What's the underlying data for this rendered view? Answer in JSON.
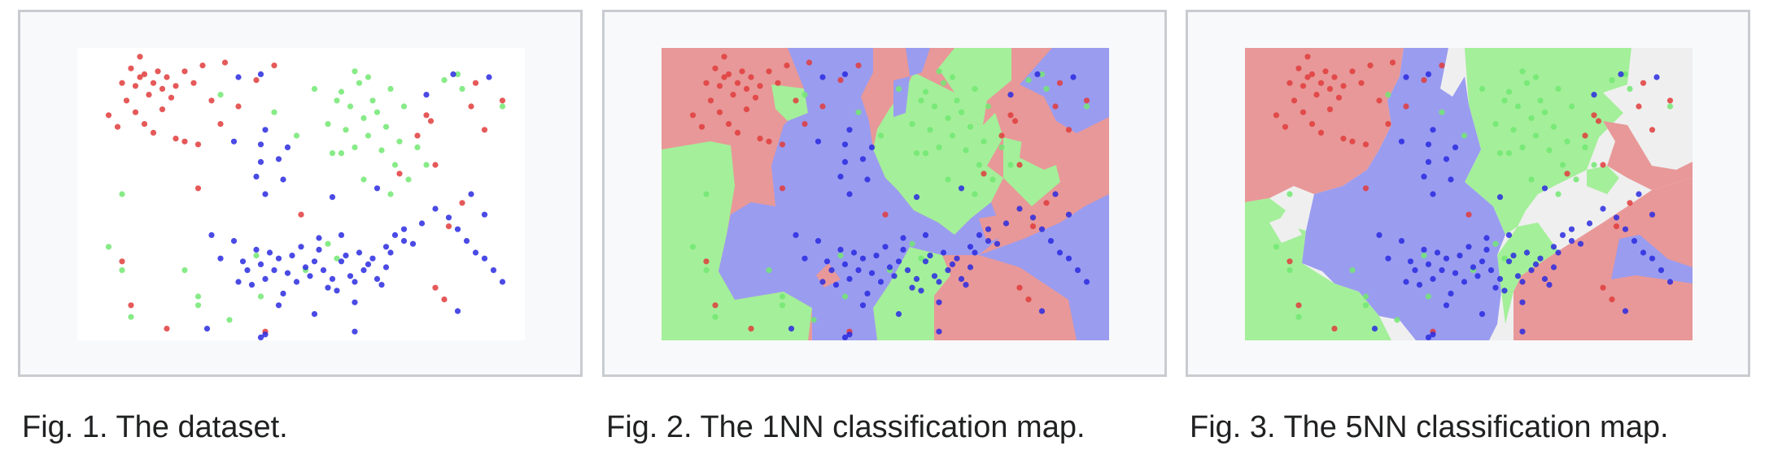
{
  "captions": {
    "fig1": "Fig. 1. The dataset.",
    "fig2": "Fig. 2. The 1NN classification map.",
    "fig3": "Fig. 3. The 5NN classification map."
  },
  "colors": {
    "red_point": "#e03c3c",
    "green_point": "#72e872",
    "blue_point": "#2a2ae0",
    "red_region": "#e89898",
    "green_region": "#a4ef9a",
    "blue_region": "#9a9cf0",
    "undecided_region": "#efefef"
  },
  "points": {
    "red": [
      [
        0.07,
        0.23
      ],
      [
        0.1,
        0.12
      ],
      [
        0.12,
        0.07
      ],
      [
        0.13,
        0.13
      ],
      [
        0.14,
        0.1
      ],
      [
        0.15,
        0.09
      ],
      [
        0.16,
        0.16
      ],
      [
        0.17,
        0.12
      ],
      [
        0.18,
        0.08
      ],
      [
        0.19,
        0.14
      ],
      [
        0.2,
        0.1
      ],
      [
        0.11,
        0.18
      ],
      [
        0.13,
        0.22
      ],
      [
        0.15,
        0.26
      ],
      [
        0.17,
        0.29
      ],
      [
        0.19,
        0.21
      ],
      [
        0.21,
        0.17
      ],
      [
        0.22,
        0.13
      ],
      [
        0.24,
        0.08
      ],
      [
        0.26,
        0.12
      ],
      [
        0.24,
        0.32
      ],
      [
        0.27,
        0.33
      ],
      [
        0.3,
        0.18
      ],
      [
        0.32,
        0.26
      ],
      [
        0.36,
        0.2
      ],
      [
        0.28,
        0.06
      ],
      [
        0.22,
        0.31
      ],
      [
        0.09,
        0.27
      ],
      [
        0.14,
        0.03
      ],
      [
        0.33,
        0.05
      ],
      [
        0.4,
        0.11
      ],
      [
        0.44,
        0.06
      ],
      [
        0.78,
        0.23
      ],
      [
        0.79,
        0.25
      ],
      [
        0.76,
        0.3
      ],
      [
        0.8,
        0.4
      ],
      [
        0.72,
        0.43
      ],
      [
        0.88,
        0.2
      ],
      [
        0.91,
        0.28
      ],
      [
        0.95,
        0.18
      ],
      [
        0.89,
        0.12
      ],
      [
        0.86,
        0.53
      ],
      [
        0.83,
        0.61
      ],
      [
        0.8,
        0.82
      ],
      [
        0.82,
        0.86
      ],
      [
        0.12,
        0.88
      ],
      [
        0.2,
        0.96
      ],
      [
        0.42,
        0.97
      ],
      [
        0.27,
        0.48
      ],
      [
        0.5,
        0.57
      ],
      [
        0.1,
        0.73
      ]
    ],
    "green": [
      [
        0.32,
        0.16
      ],
      [
        0.44,
        0.22
      ],
      [
        0.49,
        0.3
      ],
      [
        0.53,
        0.14
      ],
      [
        0.56,
        0.26
      ],
      [
        0.57,
        0.36
      ],
      [
        0.58,
        0.18
      ],
      [
        0.6,
        0.28
      ],
      [
        0.61,
        0.2
      ],
      [
        0.62,
        0.34
      ],
      [
        0.63,
        0.12
      ],
      [
        0.64,
        0.24
      ],
      [
        0.65,
        0.3
      ],
      [
        0.66,
        0.18
      ],
      [
        0.67,
        0.22
      ],
      [
        0.68,
        0.35
      ],
      [
        0.69,
        0.27
      ],
      [
        0.7,
        0.14
      ],
      [
        0.71,
        0.4
      ],
      [
        0.72,
        0.32
      ],
      [
        0.73,
        0.2
      ],
      [
        0.74,
        0.45
      ],
      [
        0.65,
        0.1
      ],
      [
        0.59,
        0.36
      ],
      [
        0.76,
        0.34
      ],
      [
        0.78,
        0.4
      ],
      [
        0.82,
        0.11
      ],
      [
        0.85,
        0.09
      ],
      [
        0.95,
        0.2
      ],
      [
        0.62,
        0.08
      ],
      [
        0.59,
        0.15
      ],
      [
        0.86,
        0.14
      ],
      [
        0.1,
        0.5
      ],
      [
        0.1,
        0.76
      ],
      [
        0.12,
        0.92
      ],
      [
        0.24,
        0.76
      ],
      [
        0.27,
        0.85
      ],
      [
        0.27,
        0.88
      ],
      [
        0.34,
        0.93
      ],
      [
        0.4,
        0.71
      ],
      [
        0.51,
        0.76
      ],
      [
        0.56,
        0.67
      ],
      [
        0.58,
        0.72
      ],
      [
        0.41,
        0.85
      ],
      [
        0.64,
        0.45
      ],
      [
        0.7,
        0.5
      ],
      [
        0.07,
        0.68
      ]
    ],
    "blue": [
      [
        0.36,
        0.1
      ],
      [
        0.41,
        0.09
      ],
      [
        0.35,
        0.32
      ],
      [
        0.42,
        0.28
      ],
      [
        0.41,
        0.33
      ],
      [
        0.47,
        0.34
      ],
      [
        0.41,
        0.39
      ],
      [
        0.4,
        0.44
      ],
      [
        0.42,
        0.5
      ],
      [
        0.45,
        0.38
      ],
      [
        0.3,
        0.64
      ],
      [
        0.32,
        0.72
      ],
      [
        0.35,
        0.66
      ],
      [
        0.36,
        0.8
      ],
      [
        0.37,
        0.73
      ],
      [
        0.38,
        0.76
      ],
      [
        0.39,
        0.81
      ],
      [
        0.4,
        0.69
      ],
      [
        0.41,
        0.74
      ],
      [
        0.42,
        0.79
      ],
      [
        0.43,
        0.7
      ],
      [
        0.44,
        0.76
      ],
      [
        0.45,
        0.72
      ],
      [
        0.46,
        0.84
      ],
      [
        0.47,
        0.77
      ],
      [
        0.48,
        0.71
      ],
      [
        0.49,
        0.8
      ],
      [
        0.5,
        0.68
      ],
      [
        0.51,
        0.75
      ],
      [
        0.52,
        0.78
      ],
      [
        0.53,
        0.73
      ],
      [
        0.54,
        0.69
      ],
      [
        0.55,
        0.76
      ],
      [
        0.56,
        0.82
      ],
      [
        0.57,
        0.79
      ],
      [
        0.58,
        0.83
      ],
      [
        0.59,
        0.73
      ],
      [
        0.6,
        0.71
      ],
      [
        0.61,
        0.78
      ],
      [
        0.62,
        0.8
      ],
      [
        0.63,
        0.7
      ],
      [
        0.64,
        0.76
      ],
      [
        0.65,
        0.74
      ],
      [
        0.66,
        0.72
      ],
      [
        0.67,
        0.79
      ],
      [
        0.68,
        0.81
      ],
      [
        0.69,
        0.75
      ],
      [
        0.7,
        0.7
      ],
      [
        0.71,
        0.64
      ],
      [
        0.73,
        0.66
      ],
      [
        0.75,
        0.67
      ],
      [
        0.77,
        0.6
      ],
      [
        0.8,
        0.55
      ],
      [
        0.83,
        0.58
      ],
      [
        0.85,
        0.62
      ],
      [
        0.87,
        0.66
      ],
      [
        0.89,
        0.7
      ],
      [
        0.91,
        0.72
      ],
      [
        0.93,
        0.76
      ],
      [
        0.95,
        0.8
      ],
      [
        0.91,
        0.57
      ],
      [
        0.88,
        0.5
      ],
      [
        0.46,
        0.45
      ],
      [
        0.59,
        0.64
      ],
      [
        0.54,
        0.65
      ],
      [
        0.69,
        0.68
      ],
      [
        0.62,
        0.87
      ],
      [
        0.53,
        0.91
      ],
      [
        0.45,
        0.88
      ],
      [
        0.29,
        0.96
      ],
      [
        0.41,
        0.99
      ],
      [
        0.42,
        0.98
      ],
      [
        0.62,
        0.97
      ],
      [
        0.85,
        0.9
      ],
      [
        0.92,
        0.1
      ],
      [
        0.84,
        0.09
      ],
      [
        0.78,
        0.16
      ],
      [
        0.73,
        0.62
      ],
      [
        0.57,
        0.51
      ],
      [
        0.67,
        0.48
      ]
    ]
  }
}
